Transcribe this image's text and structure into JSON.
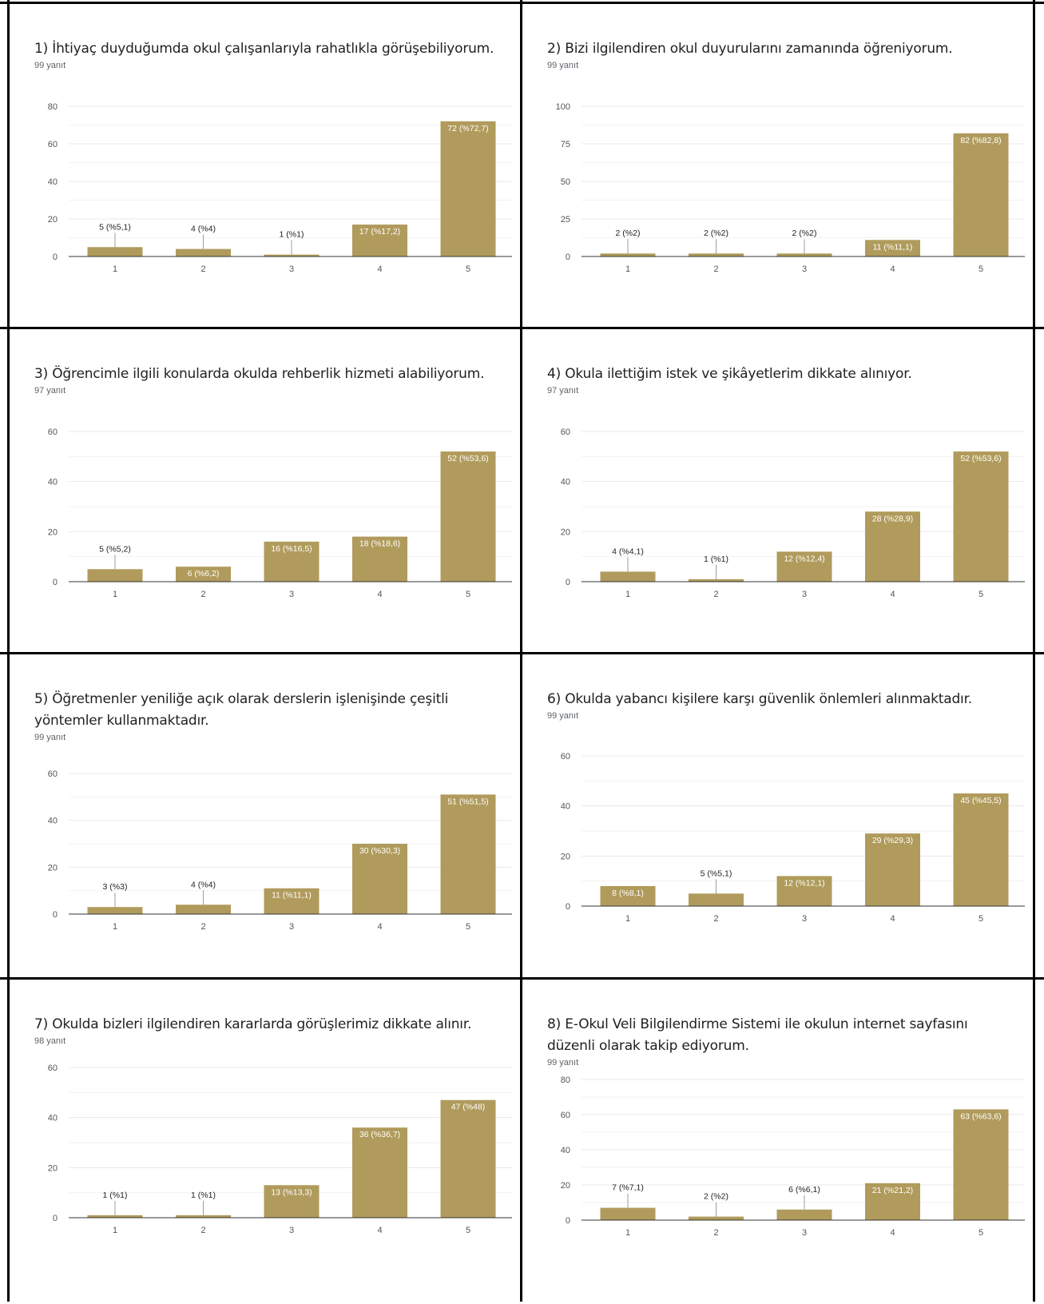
{
  "style": {
    "bar_color": "#b09b5c",
    "grid_color": "#e8e8e8",
    "axis_color": "#333333",
    "tick_color": "#555555"
  },
  "panels": [
    {
      "title": "1) İhtiyaç duyduğumda okul çalışanlarıyla rahatlıkla görüşebiliyorum.",
      "count": "99 yanıt"
    },
    {
      "title": "2) Bizi ilgilendiren okul duyurularını zamanında öğreniyorum.",
      "count": "99 yanıt"
    },
    {
      "title": "3) Öğrencimle ilgili konularda okulda rehberlik hizmeti alabiliyorum.",
      "count": "97 yanıt"
    },
    {
      "title": "4) Okula ilettiğim istek ve şikâyetlerim dikkate alınıyor.",
      "count": "97 yanıt"
    },
    {
      "title": "5) Öğretmenler yeniliğe açık olarak derslerin işlenişinde çeşitli yöntemler kullanmaktadır.",
      "count": "99 yanıt"
    },
    {
      "title": "6) Okulda yabancı kişilere karşı güvenlik önlemleri alınmaktadır.",
      "count": "99 yanıt"
    },
    {
      "title": "7) Okulda bizleri ilgilendiren kararlarda görüşlerimiz dikkate alınır.",
      "count": "98 yanıt"
    },
    {
      "title": "8) E-Okul Veli Bilgilendirme Sistemi ile okulun internet sayfasını düzenli olarak takip ediyorum.",
      "count": "99 yanıt"
    }
  ],
  "chart_data": [
    {
      "type": "bar",
      "title": "1) İhtiyaç duyduğumda okul çalışanlarıyla rahatlıkla görüşebiliyorum.",
      "categories": [
        "1",
        "2",
        "3",
        "4",
        "5"
      ],
      "values": [
        5,
        4,
        1,
        17,
        72
      ],
      "labels": [
        "5 (%5,1)",
        "4 (%4)",
        "1 (%1)",
        "17 (%17,2)",
        "72 (%72,7)"
      ],
      "yticks": [
        0,
        20,
        40,
        60,
        80
      ],
      "ylim": [
        0,
        80
      ],
      "grid": true
    },
    {
      "type": "bar",
      "title": "2) Bizi ilgilendiren okul duyurularını zamanında öğreniyorum.",
      "categories": [
        "1",
        "2",
        "3",
        "4",
        "5"
      ],
      "values": [
        2,
        2,
        2,
        11,
        82
      ],
      "labels": [
        "2 (%2)",
        "2 (%2)",
        "2 (%2)",
        "11 (%11,1)",
        "82 (%82,8)"
      ],
      "yticks": [
        0,
        25,
        50,
        75,
        100
      ],
      "ylim": [
        0,
        100
      ],
      "grid": true
    },
    {
      "type": "bar",
      "title": "3) Öğrencimle ilgili konularda okulda rehberlik hizmeti alabiliyorum.",
      "categories": [
        "1",
        "2",
        "3",
        "4",
        "5"
      ],
      "values": [
        5,
        6,
        16,
        18,
        52
      ],
      "labels": [
        "5 (%5,2)",
        "6 (%6,2)",
        "16 (%16,5)",
        "18 (%18,6)",
        "52 (%53,6)"
      ],
      "yticks": [
        0,
        20,
        40,
        60
      ],
      "ylim": [
        0,
        60
      ],
      "grid": true
    },
    {
      "type": "bar",
      "title": "4) Okula ilettiğim istek ve şikâyetlerim dikkate alınıyor.",
      "categories": [
        "1",
        "2",
        "3",
        "4",
        "5"
      ],
      "values": [
        4,
        1,
        12,
        28,
        52
      ],
      "labels": [
        "4 (%4,1)",
        "1 (%1)",
        "12 (%12,4)",
        "28 (%28,9)",
        "52 (%53,6)"
      ],
      "yticks": [
        0,
        20,
        40,
        60
      ],
      "ylim": [
        0,
        60
      ],
      "grid": true
    },
    {
      "type": "bar",
      "title": "5) Öğretmenler yeniliğe açık olarak derslerin işlenişinde çeşitli yöntemler kullanmaktadır.",
      "categories": [
        "1",
        "2",
        "3",
        "4",
        "5"
      ],
      "values": [
        3,
        4,
        11,
        30,
        51
      ],
      "labels": [
        "3 (%3)",
        "4 (%4)",
        "11 (%11,1)",
        "30 (%30,3)",
        "51 (%51,5)"
      ],
      "yticks": [
        0,
        20,
        40,
        60
      ],
      "ylim": [
        0,
        60
      ],
      "grid": true
    },
    {
      "type": "bar",
      "title": "6) Okulda yabancı kişilere karşı güvenlik önlemleri alınmaktadır.",
      "categories": [
        "1",
        "2",
        "3",
        "4",
        "5"
      ],
      "values": [
        8,
        5,
        12,
        29,
        45
      ],
      "labels": [
        "8 (%8,1)",
        "5 (%5,1)",
        "12 (%12,1)",
        "29 (%29,3)",
        "45 (%45,5)"
      ],
      "yticks": [
        0,
        20,
        40,
        60
      ],
      "ylim": [
        0,
        60
      ],
      "grid": true
    },
    {
      "type": "bar",
      "title": "7) Okulda bizleri ilgilendiren kararlarda görüşlerimiz dikkate alınır.",
      "categories": [
        "1",
        "2",
        "3",
        "4",
        "5"
      ],
      "values": [
        1,
        1,
        13,
        36,
        47
      ],
      "labels": [
        "1 (%1)",
        "1 (%1)",
        "13 (%13,3)",
        "36 (%36,7)",
        "47 (%48)"
      ],
      "yticks": [
        0,
        20,
        40,
        60
      ],
      "ylim": [
        0,
        60
      ],
      "grid": true
    },
    {
      "type": "bar",
      "title": "8) E-Okul Veli Bilgilendirme Sistemi ile okulun internet sayfasını düzenli olarak takip ediyorum.",
      "categories": [
        "1",
        "2",
        "3",
        "4",
        "5"
      ],
      "values": [
        7,
        2,
        6,
        21,
        63
      ],
      "labels": [
        "7 (%7,1)",
        "2 (%2)",
        "6 (%6,1)",
        "21 (%21,2)",
        "63 (%63,6)"
      ],
      "yticks": [
        0,
        20,
        40,
        60,
        80
      ],
      "ylim": [
        0,
        80
      ],
      "grid": true
    }
  ]
}
